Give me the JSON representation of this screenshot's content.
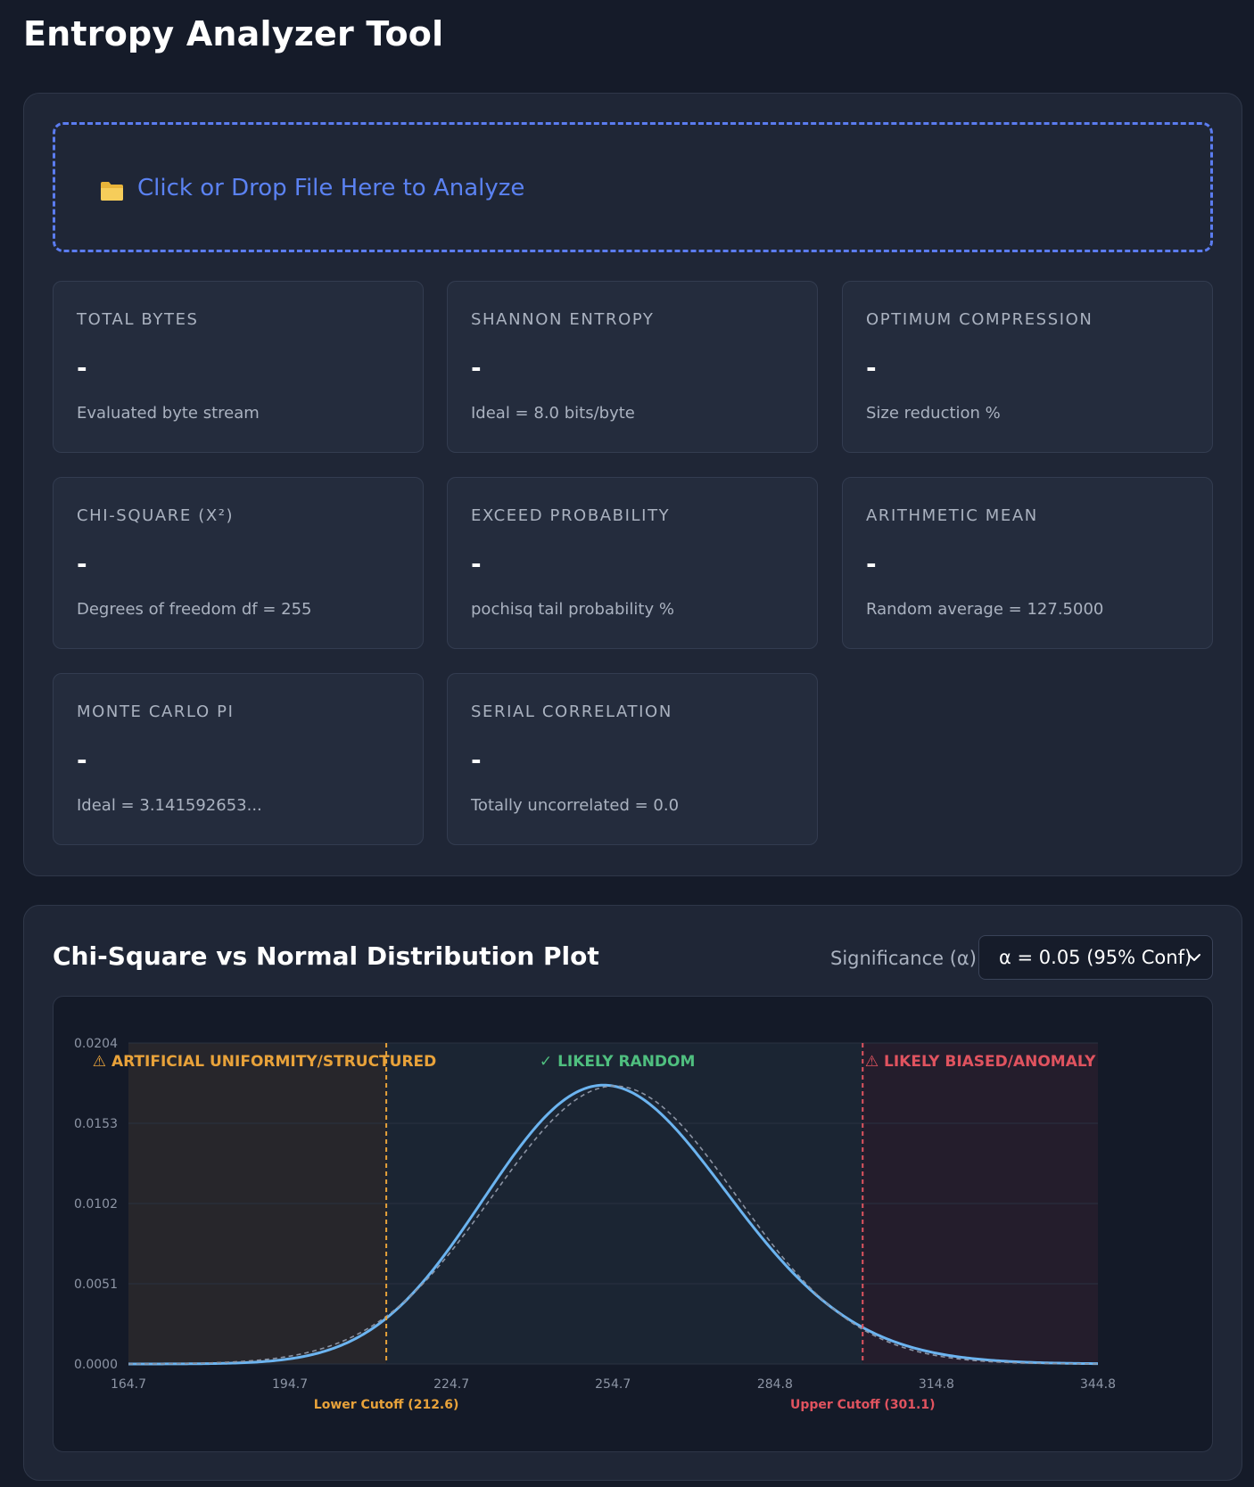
{
  "app": {
    "title": "Entropy Analyzer Tool"
  },
  "dropzone": {
    "icon": "folder-icon",
    "label": "Click or Drop File Here to Analyze"
  },
  "stats": [
    {
      "label": "TOTAL BYTES",
      "value": "-",
      "sub": "Evaluated byte stream"
    },
    {
      "label": "SHANNON ENTROPY",
      "value": "-",
      "sub": "Ideal = 8.0 bits/byte"
    },
    {
      "label": "OPTIMUM COMPRESSION",
      "value": "-",
      "sub": "Size reduction %"
    },
    {
      "label": "CHI-SQUARE (X²)",
      "value": "-",
      "sub": "Degrees of freedom df = 255"
    },
    {
      "label": "EXCEED PROBABILITY",
      "value": "-",
      "sub": "pochisq tail probability %"
    },
    {
      "label": "ARITHMETIC MEAN",
      "value": "-",
      "sub": "Random average = 127.5000"
    },
    {
      "label": "MONTE CARLO PI",
      "value": "-",
      "sub": "Ideal = 3.141592653..."
    },
    {
      "label": "SERIAL CORRELATION",
      "value": "-",
      "sub": "Totally uncorrelated = 0.0"
    }
  ],
  "plot": {
    "title": "Chi-Square vs Normal Distribution Plot",
    "significance_label": "Significance (α):",
    "significance_value": "α = 0.05 (95% Conf)"
  },
  "chart_data": {
    "type": "line",
    "xlim": [
      164.7,
      344.8
    ],
    "ylim": [
      0,
      0.0204
    ],
    "x_ticks": [
      "164.7",
      "194.7",
      "224.7",
      "254.7",
      "284.8",
      "314.8",
      "344.8"
    ],
    "y_ticks": [
      "0.0000",
      "0.0051",
      "0.0102",
      "0.0153",
      "0.0204"
    ],
    "series": [
      {
        "style": "solid",
        "color": "#6cb4f0",
        "distribution": "chi-square",
        "df": 255
      },
      {
        "style": "dashed",
        "color": "#8b93a3",
        "distribution": "normal",
        "mean": 255,
        "sd": 22.58
      }
    ],
    "lower_cutoff": {
      "value": 212.6,
      "label": "Lower Cutoff (212.6)",
      "color": "#e8a23a"
    },
    "upper_cutoff": {
      "value": 301.1,
      "label": "Upper Cutoff (301.1)",
      "color": "#e0535f"
    },
    "regions": [
      {
        "label": "⚠ ARTIFICIAL UNIFORMITY/STRUCTURED",
        "color": "#e8a23a"
      },
      {
        "label": "✓ LIKELY RANDOM",
        "color": "#4fbf7f"
      },
      {
        "label": "⚠ LIKELY BIASED/ANOMALY",
        "color": "#e0535f"
      }
    ],
    "grid": true,
    "legend": "none"
  }
}
